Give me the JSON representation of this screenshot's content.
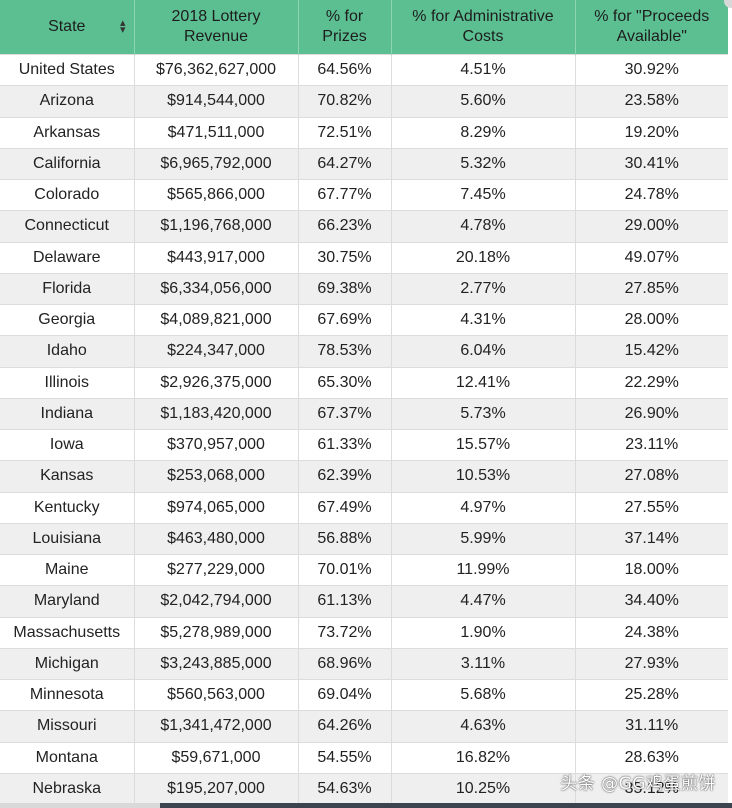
{
  "table": {
    "headers": {
      "state": "State",
      "revenue": "2018 Lottery Revenue",
      "prizes": "% for Prizes",
      "admin": "% for Administrative Costs",
      "proceeds": "% for \"Proceeds Available\""
    },
    "rows": [
      [
        "United States",
        "$76,362,627,000",
        "64.56%",
        "4.51%",
        "30.92%"
      ],
      [
        "Arizona",
        "$914,544,000",
        "70.82%",
        "5.60%",
        "23.58%"
      ],
      [
        "Arkansas",
        "$471,511,000",
        "72.51%",
        "8.29%",
        "19.20%"
      ],
      [
        "California",
        "$6,965,792,000",
        "64.27%",
        "5.32%",
        "30.41%"
      ],
      [
        "Colorado",
        "$565,866,000",
        "67.77%",
        "7.45%",
        "24.78%"
      ],
      [
        "Connecticut",
        "$1,196,768,000",
        "66.23%",
        "4.78%",
        "29.00%"
      ],
      [
        "Delaware",
        "$443,917,000",
        "30.75%",
        "20.18%",
        "49.07%"
      ],
      [
        "Florida",
        "$6,334,056,000",
        "69.38%",
        "2.77%",
        "27.85%"
      ],
      [
        "Georgia",
        "$4,089,821,000",
        "67.69%",
        "4.31%",
        "28.00%"
      ],
      [
        "Idaho",
        "$224,347,000",
        "78.53%",
        "6.04%",
        "15.42%"
      ],
      [
        "Illinois",
        "$2,926,375,000",
        "65.30%",
        "12.41%",
        "22.29%"
      ],
      [
        "Indiana",
        "$1,183,420,000",
        "67.37%",
        "5.73%",
        "26.90%"
      ],
      [
        "Iowa",
        "$370,957,000",
        "61.33%",
        "15.57%",
        "23.11%"
      ],
      [
        "Kansas",
        "$253,068,000",
        "62.39%",
        "10.53%",
        "27.08%"
      ],
      [
        "Kentucky",
        "$974,065,000",
        "67.49%",
        "4.97%",
        "27.55%"
      ],
      [
        "Louisiana",
        "$463,480,000",
        "56.88%",
        "5.99%",
        "37.14%"
      ],
      [
        "Maine",
        "$277,229,000",
        "70.01%",
        "11.99%",
        "18.00%"
      ],
      [
        "Maryland",
        "$2,042,794,000",
        "61.13%",
        "4.47%",
        "34.40%"
      ],
      [
        "Massachusetts",
        "$5,278,989,000",
        "73.72%",
        "1.90%",
        "24.38%"
      ],
      [
        "Michigan",
        "$3,243,885,000",
        "68.96%",
        "3.11%",
        "27.93%"
      ],
      [
        "Minnesota",
        "$560,563,000",
        "69.04%",
        "5.68%",
        "25.28%"
      ],
      [
        "Missouri",
        "$1,341,472,000",
        "64.26%",
        "4.63%",
        "31.11%"
      ],
      [
        "Montana",
        "$59,671,000",
        "54.55%",
        "16.82%",
        "28.63%"
      ],
      [
        "Nebraska",
        "$195,207,000",
        "54.63%",
        "10.25%",
        "35.12%"
      ]
    ]
  },
  "icons": {
    "sort": "sort-updown-icon"
  },
  "colors": {
    "header_bg": "#5cbf92",
    "row_alt": "#efefef",
    "row_base": "#ffffff",
    "scroll_thumb": "#3c4450"
  },
  "watermark": "头条 @GG鸡蛋煎饼"
}
